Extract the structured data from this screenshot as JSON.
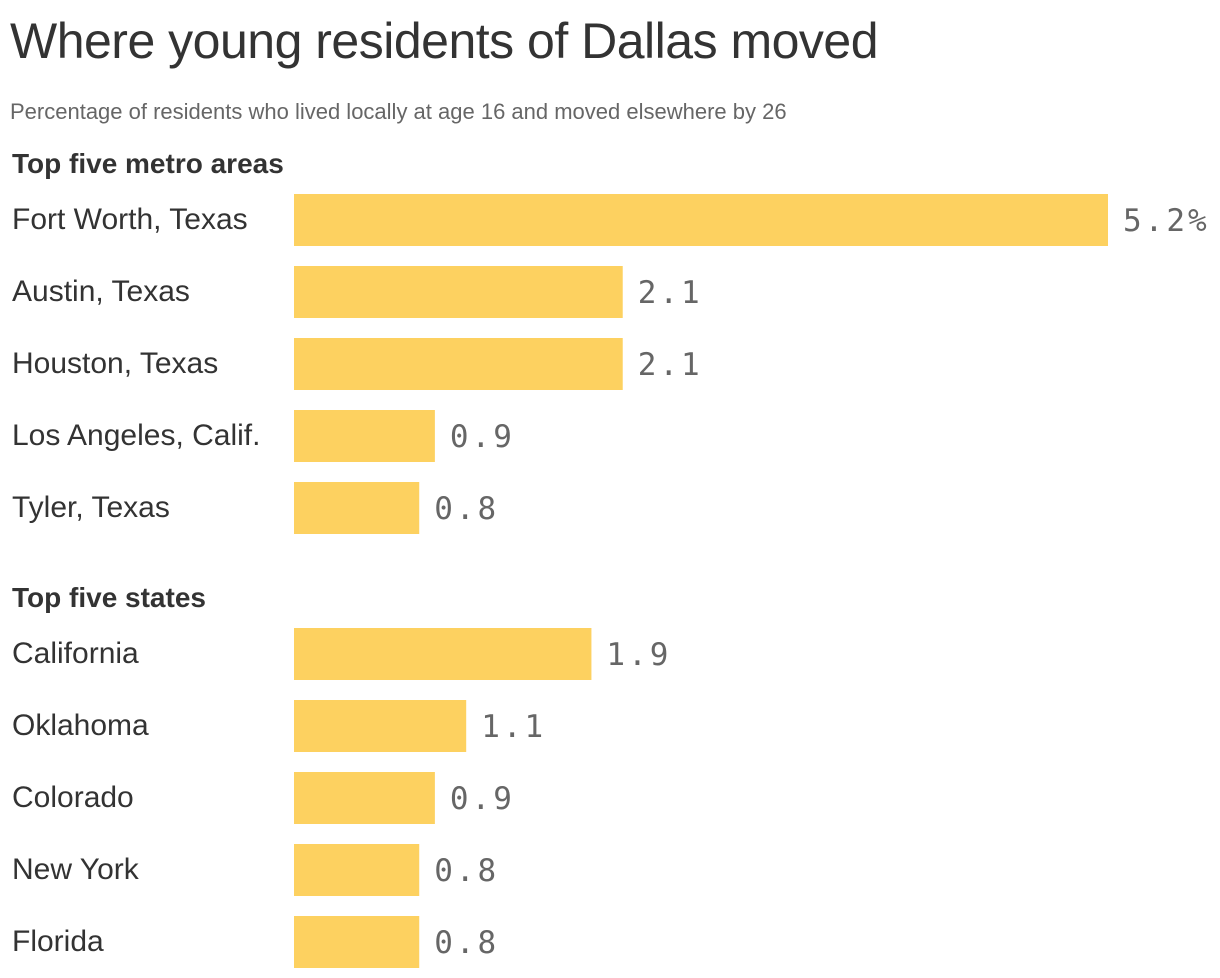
{
  "header": {
    "title": "Where young residents of Dallas moved",
    "subtitle": "Percentage of residents who lived locally at age 16 and moved elsewhere by 26"
  },
  "chart_data": [
    {
      "type": "bar",
      "orientation": "horizontal",
      "title": "Top five metro areas",
      "categories": [
        "Fort Worth, Texas",
        "Austin, Texas",
        "Houston, Texas",
        "Los Angeles, Calif.",
        "Tyler, Texas"
      ],
      "values": [
        5.2,
        2.1,
        2.1,
        0.9,
        0.8
      ],
      "value_labels": [
        "5.2%",
        "2.1",
        "2.1",
        "0.9",
        "0.8"
      ],
      "xlim": [
        0,
        5.2
      ],
      "grid": false,
      "bar_color": "#fdd160"
    },
    {
      "type": "bar",
      "orientation": "horizontal",
      "title": "Top five states",
      "categories": [
        "California",
        "Oklahoma",
        "Colorado",
        "New York",
        "Florida"
      ],
      "values": [
        1.9,
        1.1,
        0.9,
        0.8,
        0.8
      ],
      "value_labels": [
        "1.9",
        "1.1",
        "0.9",
        "0.8",
        "0.8"
      ],
      "xlim": [
        0,
        5.2
      ],
      "grid": false,
      "bar_color": "#fdd160"
    }
  ]
}
